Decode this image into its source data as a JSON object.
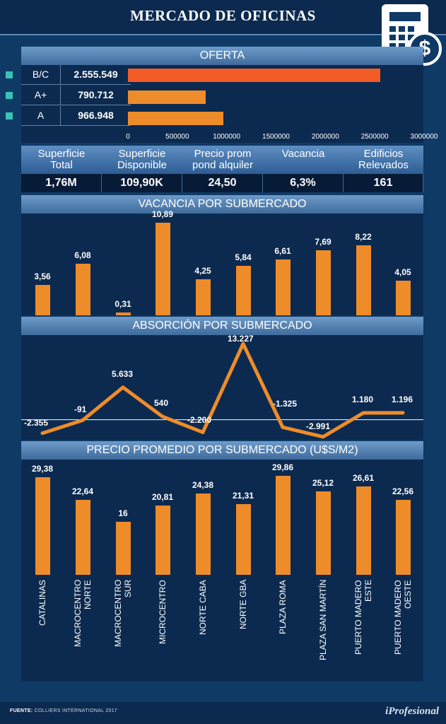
{
  "title": "MERCADO DE OFICINAS",
  "icons": {
    "calculator": "calculator-icon",
    "dollar": "dollar-coin-icon",
    "dollar_glyph": "$"
  },
  "colors": {
    "accent": "#ee8c2a",
    "highlight": "#f25c27",
    "teal": "#39c2b4",
    "panel": "#0c2a4f",
    "background": "#0f3a66"
  },
  "chart_data": [
    {
      "type": "bar",
      "orientation": "horizontal",
      "title": "OFERTA",
      "categories": [
        "B/C",
        "A+",
        "A"
      ],
      "values": [
        2555549,
        790712,
        966948
      ],
      "value_labels": [
        "2.555.549",
        "790.712",
        "966.948"
      ],
      "xlim": [
        0,
        3000000
      ],
      "ticks": [
        "0",
        "500000",
        "1000000",
        "1500000",
        "2000000",
        "2500000",
        "3000000"
      ]
    },
    {
      "type": "table",
      "headers": [
        "Superficie\nTotal",
        "Superficie\nDisponible",
        "Precio prom\npond alquiler",
        "Vacancia",
        "Edificios\nRelevados"
      ],
      "values": [
        "1,76M",
        "109,90K",
        "24,50",
        "6,3%",
        "161"
      ]
    },
    {
      "type": "bar",
      "title": "VACANCIA POR SUBMERCADO",
      "categories": [
        "CATALINAS",
        "MACROCENTRO NORTE",
        "MACROCENTRO SUR",
        "MICROCENTRO",
        "NORTE CABA",
        "NORTE GBA",
        "PLAZA ROMA",
        "PLAZA SAN MARTÍN",
        "PUERTO MADERO ESTE",
        "PUERTO MADERO OESTE"
      ],
      "values": [
        3.56,
        6.08,
        0.31,
        10.89,
        4.25,
        5.84,
        6.61,
        7.69,
        8.22,
        4.05
      ],
      "value_labels": [
        "3,56",
        "6,08",
        "0,31",
        "10,89",
        "4,25",
        "5,84",
        "6,61",
        "7,69",
        "8,22",
        "4,05"
      ],
      "ylim": [
        0,
        11
      ]
    },
    {
      "type": "line",
      "title": "ABSORCIÓN POR SUBMERCADO",
      "categories": [
        "CATALINAS",
        "MACROCENTRO NORTE",
        "MACROCENTRO SUR",
        "MICROCENTRO",
        "NORTE CABA",
        "NORTE GBA",
        "PLAZA ROMA",
        "PLAZA SAN MARTÍN",
        "PUERTO MADERO ESTE",
        "PUERTO MADERO OESTE"
      ],
      "values": [
        -2355,
        -91,
        5633,
        540,
        -2200,
        13227,
        -1325,
        -2991,
        1180,
        1196
      ],
      "value_labels": [
        "-2.355",
        "-91",
        "5.633",
        "540",
        "-2.200",
        "13.227",
        "-1.325",
        "-2.991",
        "1.180",
        "1.196"
      ],
      "ylim": [
        -3500,
        13500
      ]
    },
    {
      "type": "bar",
      "title": "PRECIO PROMEDIO POR SUBMERCADO (U$S/M2)",
      "categories": [
        "CATALINAS",
        "MACROCENTRO\nNORTE",
        "MACROCENTRO\nSUR",
        "MICROCENTRO",
        "NORTE CABA",
        "NORTE GBA",
        "PLAZA ROMA",
        "PLAZA SAN MARTÍN",
        "PUERTO MADERO\nESTE",
        "PUERTO MADERO\nOESTE"
      ],
      "values": [
        29.38,
        22.64,
        16,
        20.81,
        24.38,
        21.31,
        29.86,
        25.12,
        26.61,
        22.56
      ],
      "value_labels": [
        "29,38",
        "22,64",
        "16",
        "20,81",
        "24,38",
        "21,31",
        "29,86",
        "25,12",
        "26,61",
        "22,56"
      ],
      "ylim": [
        0,
        30
      ]
    }
  ],
  "footer": {
    "source_label": "FUENTE:",
    "source_text": "COLLIERS INTERNATIONAL 2017",
    "brand": "iProfesional"
  }
}
